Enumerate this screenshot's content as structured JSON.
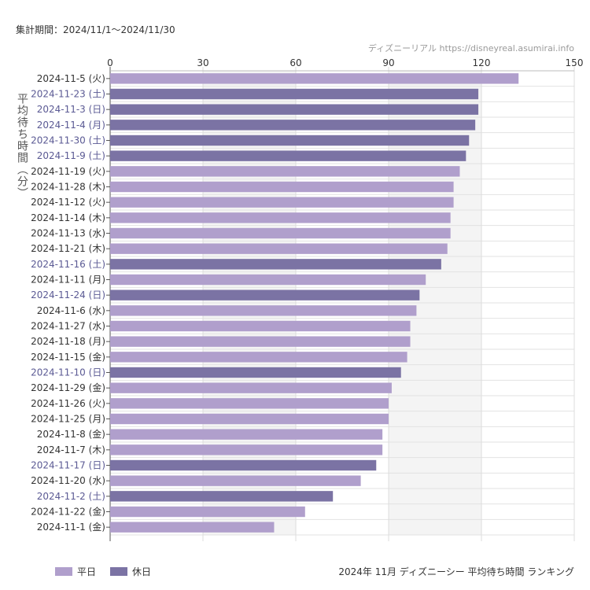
{
  "header": {
    "period": "集計期間：2024/11/1〜2024/11/30",
    "watermark": "ディズニーリアル https://disneyreal.asumirai.info"
  },
  "legend": [
    {
      "label": "平日",
      "color": "#b09fcc"
    },
    {
      "label": "休日",
      "color": "#7b73a4"
    }
  ],
  "footer": {
    "title": "2024年 11月 ディズニーシー 平均待ち時間 ランキング"
  },
  "colors": {
    "weekday": "#b09fcc",
    "holiday": "#7b73a4",
    "holiday_label": "#5b5a94",
    "weekday_label": "#333333"
  },
  "chart_data": {
    "type": "bar",
    "orientation": "horizontal",
    "ylabel": "平均待ち時間（分）",
    "xlim": [
      0,
      150
    ],
    "xticks": [
      0,
      30,
      60,
      90,
      120,
      150
    ],
    "grid": true,
    "legend_position": "bottom-left",
    "categories": [
      "2024-11-5 (火)",
      "2024-11-23 (土)",
      "2024-11-3 (日)",
      "2024-11-4 (月)",
      "2024-11-30 (土)",
      "2024-11-9 (土)",
      "2024-11-19 (火)",
      "2024-11-28 (木)",
      "2024-11-12 (火)",
      "2024-11-14 (木)",
      "2024-11-13 (水)",
      "2024-11-21 (木)",
      "2024-11-16 (土)",
      "2024-11-11 (月)",
      "2024-11-24 (日)",
      "2024-11-6 (水)",
      "2024-11-27 (水)",
      "2024-11-18 (月)",
      "2024-11-15 (金)",
      "2024-11-10 (日)",
      "2024-11-29 (金)",
      "2024-11-26 (火)",
      "2024-11-25 (月)",
      "2024-11-8 (金)",
      "2024-11-7 (木)",
      "2024-11-17 (日)",
      "2024-11-20 (水)",
      "2024-11-2 (土)",
      "2024-11-22 (金)",
      "2024-11-1 (金)"
    ],
    "values": [
      132,
      119,
      119,
      118,
      116,
      115,
      113,
      111,
      111,
      110,
      110,
      109,
      107,
      102,
      100,
      99,
      97,
      97,
      96,
      94,
      91,
      90,
      90,
      88,
      88,
      86,
      81,
      72,
      63,
      53
    ],
    "series": [
      {
        "name": "平日",
        "days": "weekday"
      },
      {
        "name": "休日",
        "days": "holiday"
      }
    ],
    "holiday_flags": [
      false,
      true,
      true,
      true,
      true,
      true,
      false,
      false,
      false,
      false,
      false,
      false,
      true,
      false,
      true,
      false,
      false,
      false,
      false,
      true,
      false,
      false,
      false,
      false,
      false,
      true,
      false,
      true,
      false,
      false
    ]
  }
}
